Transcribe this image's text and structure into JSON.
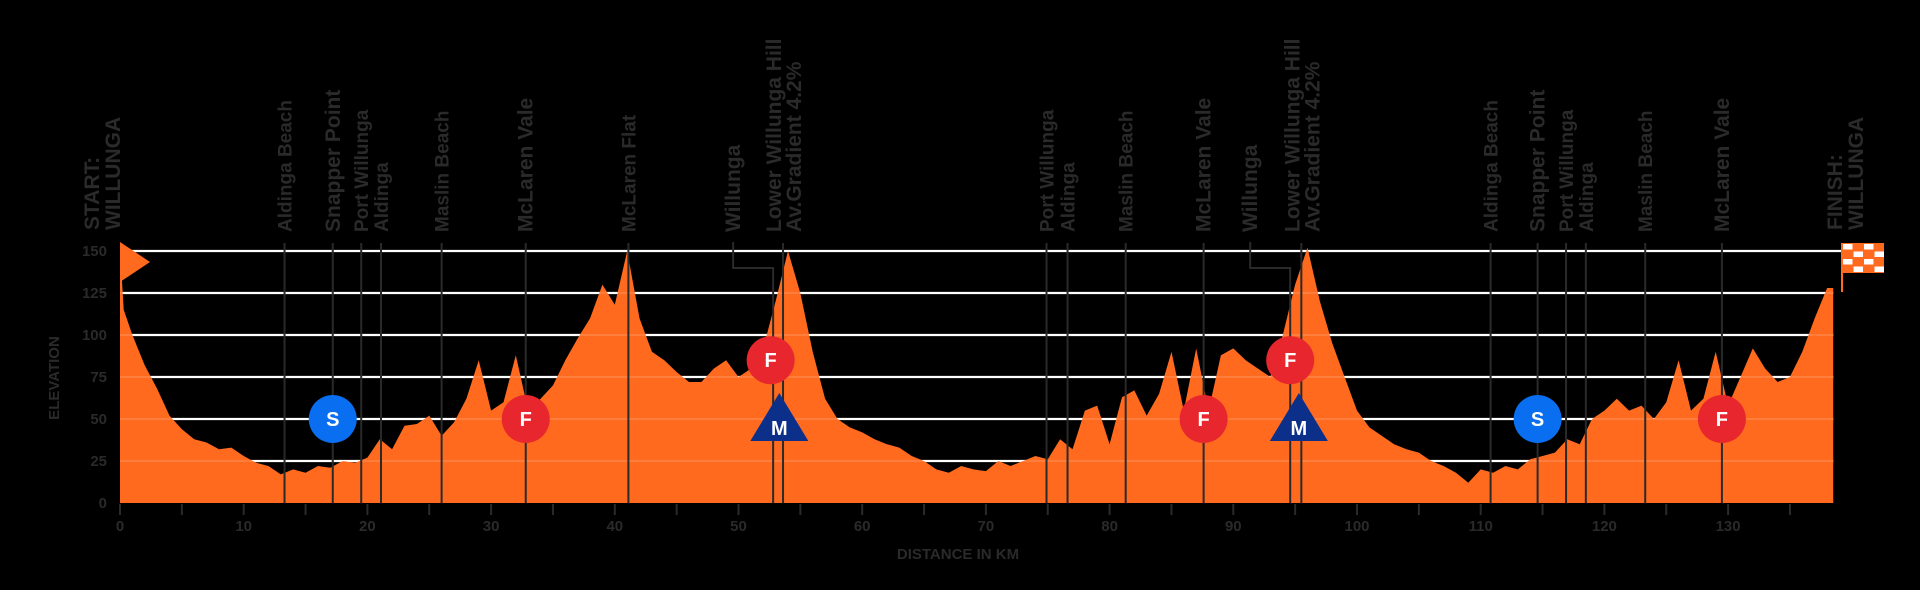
{
  "colors": {
    "background": "#000000",
    "profile_fill": "#FF6A1F",
    "gridline": "#FFFFFF",
    "text": "#2A2A2A",
    "sprint_blue": "#0A6EF0",
    "feed_red": "#E8262E",
    "kom_navy": "#0C2F8A"
  },
  "chart_data": {
    "type": "area",
    "title": "",
    "xlabel": "DISTANCE IN KM",
    "ylabel": "ELEVATION",
    "xlim": [
      0,
      138.5
    ],
    "ylim": [
      0,
      150
    ],
    "x_ticks": [
      0,
      10,
      20,
      30,
      40,
      50,
      60,
      70,
      80,
      90,
      100,
      110,
      120,
      130
    ],
    "y_ticks": [
      0,
      25,
      50,
      75,
      100,
      125,
      150
    ],
    "grid": "horizontal",
    "series": [
      {
        "name": "Elevation",
        "x": [
          0,
          0.3,
          1,
          2,
          3,
          4,
          5,
          6,
          7,
          8,
          9,
          10,
          11,
          12,
          13,
          14,
          15,
          16,
          17,
          18,
          19,
          20,
          21,
          22,
          23,
          24,
          25,
          26,
          27,
          28,
          29,
          30,
          31,
          32,
          33,
          34,
          35,
          36,
          37,
          38,
          39,
          40,
          41,
          42,
          43,
          44,
          45,
          46,
          47,
          48,
          49,
          50,
          51,
          52,
          53,
          54,
          55,
          56,
          57,
          58,
          59,
          60,
          61,
          62,
          63,
          64,
          65,
          66,
          67,
          68,
          69,
          70,
          71,
          72,
          73,
          74,
          75,
          76,
          77,
          78,
          79,
          80,
          81,
          82,
          83,
          84,
          85,
          86,
          87,
          88,
          89,
          90,
          91,
          92,
          93,
          94,
          95,
          96,
          97,
          98,
          99,
          100,
          101,
          102,
          103,
          104,
          105,
          106,
          107,
          108,
          109,
          110,
          111,
          112,
          113,
          114,
          115,
          116,
          117,
          118,
          119,
          120,
          121,
          122,
          123,
          124,
          125,
          126,
          127,
          128,
          129,
          130,
          131,
          132,
          133,
          134,
          135,
          136,
          137,
          138,
          138.5
        ],
        "values": [
          155,
          115,
          100,
          82,
          68,
          52,
          44,
          38,
          36,
          32,
          33,
          28,
          24,
          22,
          17,
          20,
          18,
          22,
          21,
          25,
          24,
          27,
          38,
          32,
          46,
          47,
          52,
          40,
          48,
          62,
          85,
          55,
          60,
          88,
          55,
          62,
          70,
          85,
          98,
          110,
          130,
          118,
          150,
          110,
          90,
          85,
          78,
          72,
          72,
          80,
          85,
          75,
          80,
          92,
          120,
          150,
          125,
          90,
          62,
          50,
          45,
          42,
          38,
          35,
          33,
          28,
          25,
          20,
          18,
          22,
          20,
          19,
          25,
          22,
          25,
          28,
          26,
          38,
          32,
          55,
          58,
          35,
          63,
          67,
          52,
          65,
          90,
          55,
          92,
          55,
          88,
          92,
          85,
          80,
          75,
          100,
          130,
          152,
          120,
          95,
          75,
          55,
          45,
          40,
          35,
          32,
          30,
          25,
          22,
          18,
          12,
          20,
          18,
          22,
          20,
          26,
          28,
          30,
          38,
          35,
          50,
          55,
          62,
          55,
          58,
          50,
          60,
          85,
          55,
          62,
          90,
          58,
          75,
          92,
          80,
          72,
          75,
          90,
          110,
          128,
          128
        ]
      }
    ],
    "start": {
      "label_1": "START:",
      "label_2": "WILLUNGA",
      "km": 0
    },
    "finish": {
      "label_1": "FINISH:",
      "label_2": "WILLUNGA",
      "km": 138.5
    },
    "waypoints": [
      {
        "name": "Aldinga Beach",
        "km": 13.3
      },
      {
        "name": "Snapper Point",
        "km": 17.2,
        "bold": true,
        "marker": "S"
      },
      {
        "name": "Port Willunga",
        "km": 19.5
      },
      {
        "name": "Aldinga",
        "km": 21.1
      },
      {
        "name": "Maslin Beach",
        "km": 26.0
      },
      {
        "name": "McLaren Vale",
        "km": 32.8,
        "bold": true,
        "marker": "F"
      },
      {
        "name": "McLaren Flat",
        "km": 41.1
      },
      {
        "name": "Willunga",
        "km": 52.8,
        "bold": true,
        "marker": "F"
      },
      {
        "name": "Lower Willunga Hill",
        "sub": "Av.Gradient 4.2%",
        "km": 53.6,
        "bold": true,
        "marker": "M"
      },
      {
        "name": "Port Willunga",
        "km": 74.9
      },
      {
        "name": "Aldinga",
        "km": 76.6
      },
      {
        "name": "Maslin Beach",
        "km": 81.3
      },
      {
        "name": "McLaren Vale",
        "km": 87.6,
        "bold": true,
        "marker": "F"
      },
      {
        "name": "Willunga",
        "km": 94.6,
        "bold": true,
        "marker": "F"
      },
      {
        "name": "Lower Willunga Hill",
        "sub": "Av.Gradient 4.2%",
        "km": 95.5,
        "bold": true,
        "marker": "M"
      },
      {
        "name": "Aldinga Beach",
        "km": 110.8
      },
      {
        "name": "Snapper Point",
        "km": 114.6,
        "bold": true,
        "marker": "S"
      },
      {
        "name": "Port Willunga",
        "km": 116.9
      },
      {
        "name": "Aldinga",
        "km": 118.5
      },
      {
        "name": "Maslin Beach",
        "km": 123.3
      },
      {
        "name": "McLaren Vale",
        "km": 129.5,
        "bold": true,
        "marker": "F"
      }
    ],
    "markers": [
      {
        "type": "S",
        "label": "S",
        "meaning": "sprint",
        "km": 17.2,
        "elev": 50
      },
      {
        "type": "F",
        "label": "F",
        "meaning": "feed",
        "km": 32.8,
        "elev": 50
      },
      {
        "type": "F",
        "label": "F",
        "meaning": "feed",
        "km": 52.6,
        "elev": 85
      },
      {
        "type": "M",
        "label": "M",
        "meaning": "mountain",
        "km": 53.3,
        "elev": 50
      },
      {
        "type": "F",
        "label": "F",
        "meaning": "feed",
        "km": 87.6,
        "elev": 50
      },
      {
        "type": "F",
        "label": "F",
        "meaning": "feed",
        "km": 94.6,
        "elev": 85
      },
      {
        "type": "M",
        "label": "M",
        "meaning": "mountain",
        "km": 95.3,
        "elev": 50
      },
      {
        "type": "S",
        "label": "S",
        "meaning": "sprint",
        "km": 114.6,
        "elev": 50
      },
      {
        "type": "F",
        "label": "F",
        "meaning": "feed",
        "km": 129.5,
        "elev": 50
      }
    ]
  }
}
